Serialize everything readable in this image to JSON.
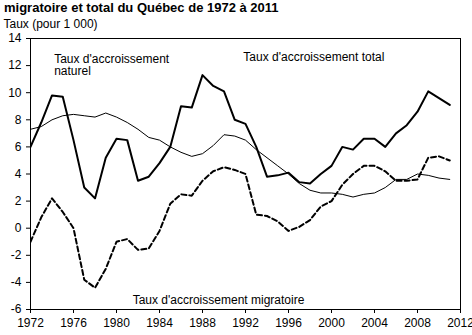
{
  "chart_data": {
    "type": "line",
    "title": "migratoire et total du Québec de 1972 à 2011",
    "y_label": "Taux (pour 1 000)",
    "x": [
      1972,
      1973,
      1974,
      1975,
      1976,
      1977,
      1978,
      1979,
      1980,
      1981,
      1982,
      1983,
      1984,
      1985,
      1986,
      1987,
      1988,
      1989,
      1990,
      1991,
      1992,
      1993,
      1994,
      1995,
      1996,
      1997,
      1998,
      1999,
      2000,
      2001,
      2002,
      2003,
      2004,
      2005,
      2006,
      2007,
      2008,
      2009,
      2010,
      2011
    ],
    "series": [
      {
        "name": "Taux d'accroissement total",
        "color": "#000000",
        "line_style": "solid",
        "values": [
          6.0,
          7.8,
          9.8,
          9.7,
          6.5,
          3.0,
          2.2,
          5.2,
          6.6,
          6.5,
          3.5,
          3.8,
          4.8,
          6.0,
          9.0,
          8.9,
          11.3,
          10.5,
          10.1,
          8.0,
          7.7,
          6.0,
          3.8,
          3.9,
          4.1,
          3.4,
          3.3,
          4.0,
          4.6,
          6.0,
          5.8,
          6.6,
          6.6,
          6.0,
          7.0,
          7.6,
          8.6,
          10.1,
          9.6,
          9.1
        ]
      },
      {
        "name": "Taux d'accroissement naturel",
        "color": "#000000",
        "line_style": "solid",
        "values": [
          7.3,
          7.5,
          8.0,
          8.3,
          8.4,
          8.3,
          8.2,
          8.5,
          8.2,
          7.8,
          7.3,
          6.7,
          6.5,
          6.0,
          5.6,
          5.3,
          5.5,
          6.1,
          6.9,
          6.8,
          6.5,
          5.8,
          5.2,
          4.6,
          4.0,
          3.3,
          2.8,
          2.6,
          2.6,
          2.5,
          2.3,
          2.5,
          2.6,
          3.0,
          3.6,
          3.6,
          4.0,
          3.9,
          3.7,
          3.6
        ]
      },
      {
        "name": "Taux d'accroissement migratoire",
        "color": "#000000",
        "line_style": "dashed",
        "values": [
          -1.0,
          0.8,
          2.2,
          1.2,
          0.0,
          -3.8,
          -4.4,
          -3.0,
          -1.0,
          -0.8,
          -1.6,
          -1.5,
          -0.2,
          1.8,
          2.5,
          2.4,
          3.5,
          4.2,
          4.5,
          4.3,
          4.0,
          1.0,
          0.9,
          0.5,
          -0.2,
          0.1,
          0.6,
          1.6,
          2.0,
          3.2,
          4.0,
          4.6,
          4.6,
          4.2,
          3.5,
          3.5,
          3.6,
          5.2,
          5.3,
          5.0
        ]
      }
    ],
    "annotations": [
      "Taux d'accroissement\nnaturel",
      "Taux d'accroissement total",
      "Taux d'accroissement migratoire"
    ],
    "xlim": [
      1972,
      2012
    ],
    "xticks": [
      1972,
      1976,
      1980,
      1984,
      1988,
      1992,
      1996,
      2000,
      2004,
      2008,
      2012
    ],
    "ylim": [
      -6,
      14
    ],
    "yticks": [
      -6,
      -4,
      -2,
      0,
      2,
      4,
      6,
      8,
      10,
      12,
      14
    ],
    "grid": false,
    "legend": "none"
  }
}
